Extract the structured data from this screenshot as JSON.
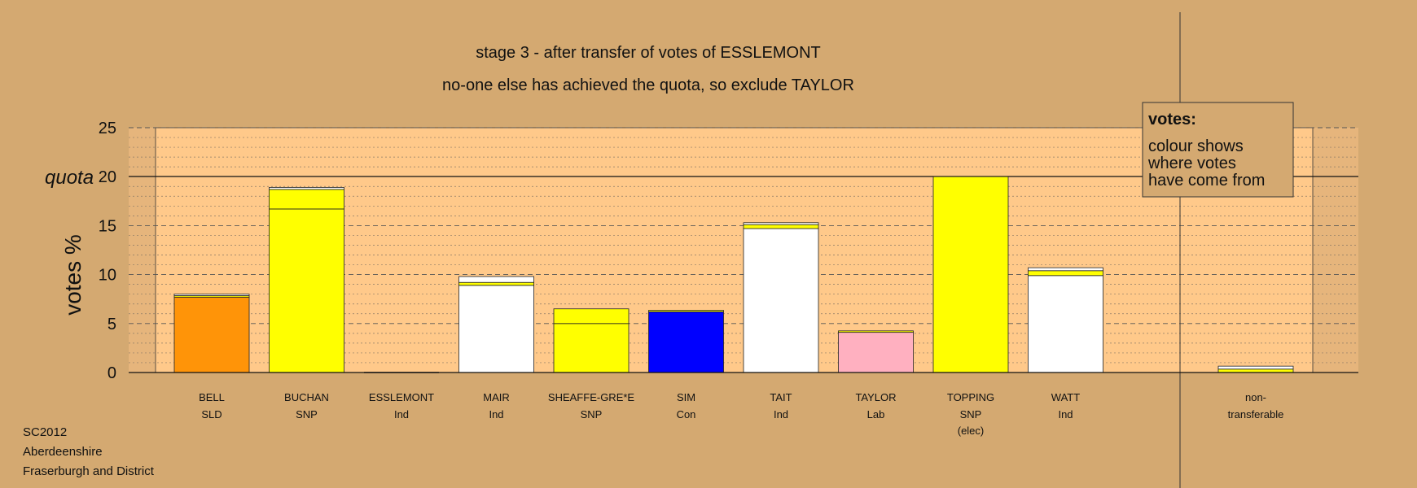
{
  "chart_data": {
    "type": "bar",
    "title": "stage 3 - after transfer of votes of ESSLEMONT",
    "subtitle": "no-one else has achieved the quota, so exclude TAYLOR",
    "ylabel": "votes %",
    "ylim": [
      0,
      25
    ],
    "yticks": [
      0,
      5,
      10,
      15,
      20,
      25
    ],
    "quota": 20,
    "quota_label": "quota",
    "grid": true,
    "categories": [
      {
        "name": "BELL",
        "party": "SLD",
        "note": ""
      },
      {
        "name": "BUCHAN",
        "party": "SNP",
        "note": ""
      },
      {
        "name": "ESSLEMONT",
        "party": "Ind",
        "note": ""
      },
      {
        "name": "MAIR",
        "party": "Ind",
        "note": ""
      },
      {
        "name": "SHEAFFE-GRE*E",
        "party": "SNP",
        "note": ""
      },
      {
        "name": "SIM",
        "party": "Con",
        "note": ""
      },
      {
        "name": "TAIT",
        "party": "Ind",
        "note": ""
      },
      {
        "name": "TAYLOR",
        "party": "Lab",
        "note": ""
      },
      {
        "name": "TOPPING",
        "party": "SNP",
        "note": "(elec)"
      },
      {
        "name": "WATT",
        "party": "Ind",
        "note": ""
      }
    ],
    "bars": [
      {
        "segments": [
          {
            "value": 7.7,
            "color": "#FF9408"
          },
          {
            "value": 0.15,
            "color": "#FFFF00"
          },
          {
            "value": 0.15,
            "color": "#FFFFFF"
          }
        ]
      },
      {
        "segments": [
          {
            "value": 16.7,
            "color": "#FFFF00"
          },
          {
            "value": 2.0,
            "color": "#FFFF00"
          },
          {
            "value": 0.2,
            "color": "#FFFFFF"
          }
        ]
      },
      {
        "segments": []
      },
      {
        "segments": [
          {
            "value": 8.9,
            "color": "#FFFFFF"
          },
          {
            "value": 0.3,
            "color": "#FFFF00"
          },
          {
            "value": 0.6,
            "color": "#FFFFFF"
          }
        ]
      },
      {
        "segments": [
          {
            "value": 5.0,
            "color": "#FFFF00"
          },
          {
            "value": 1.5,
            "color": "#FFFF00"
          }
        ]
      },
      {
        "segments": [
          {
            "value": 6.2,
            "color": "#0000FF"
          },
          {
            "value": 0.15,
            "color": "#FFFF00"
          }
        ]
      },
      {
        "segments": [
          {
            "value": 14.7,
            "color": "#FFFFFF"
          },
          {
            "value": 0.4,
            "color": "#FFFF00"
          },
          {
            "value": 0.2,
            "color": "#FFFFFF"
          }
        ]
      },
      {
        "segments": [
          {
            "value": 4.1,
            "color": "#FFB0C0"
          },
          {
            "value": 0.15,
            "color": "#FFFF00"
          }
        ]
      },
      {
        "segments": [
          {
            "value": 20.0,
            "color": "#FFFF00"
          }
        ]
      },
      {
        "segments": [
          {
            "value": 9.9,
            "color": "#FFFFFF"
          },
          {
            "value": 0.5,
            "color": "#FFFF00"
          },
          {
            "value": 0.3,
            "color": "#FFFFFF"
          }
        ]
      }
    ],
    "nontransferable": {
      "label_line1": "non-",
      "label_line2": "transferable",
      "segments": [
        {
          "value": 0.35,
          "color": "#FFFF00"
        },
        {
          "value": 0.3,
          "color": "#FFFFFF"
        }
      ]
    }
  },
  "legend": {
    "title": "votes:",
    "lines": [
      "colour shows",
      "where votes",
      "have come from"
    ]
  },
  "footer": {
    "lines": [
      "SC2012",
      "Aberdeenshire",
      "Fraserburgh and District"
    ]
  },
  "colors": {
    "background": "#D4A971",
    "plot_background": "#FFC98A",
    "plot_side": "#E6B57C"
  }
}
